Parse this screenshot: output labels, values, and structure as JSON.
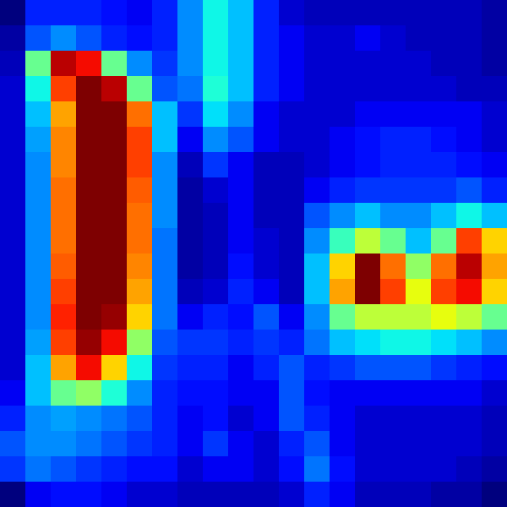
{
  "chart_data": {
    "type": "heatmap",
    "color": "jet",
    "tick_labels": false,
    "cells": [
      [
        0.05,
        0.2,
        0.2,
        0.2,
        0.18,
        0.15,
        0.2,
        0.3,
        0.4,
        0.35,
        0.2,
        0.12,
        0.1,
        0.1,
        0.1,
        0.1,
        0.1,
        0.1,
        0.1,
        0.08
      ],
      [
        0.08,
        0.25,
        0.3,
        0.25,
        0.2,
        0.18,
        0.2,
        0.3,
        0.4,
        0.35,
        0.2,
        0.15,
        0.12,
        0.12,
        0.15,
        0.12,
        0.1,
        0.1,
        0.1,
        0.08
      ],
      [
        0.1,
        0.5,
        0.95,
        0.9,
        0.5,
        0.3,
        0.22,
        0.3,
        0.4,
        0.35,
        0.2,
        0.15,
        0.12,
        0.12,
        0.12,
        0.12,
        0.12,
        0.1,
        0.1,
        0.08
      ],
      [
        0.12,
        0.4,
        0.85,
        1.0,
        0.95,
        0.5,
        0.25,
        0.28,
        0.42,
        0.35,
        0.2,
        0.15,
        0.12,
        0.12,
        0.12,
        0.12,
        0.12,
        0.12,
        0.1,
        0.1
      ],
      [
        0.12,
        0.35,
        0.75,
        1.0,
        1.0,
        0.8,
        0.35,
        0.22,
        0.38,
        0.3,
        0.15,
        0.12,
        0.12,
        0.12,
        0.15,
        0.15,
        0.15,
        0.15,
        0.15,
        0.12
      ],
      [
        0.12,
        0.32,
        0.78,
        1.0,
        1.0,
        0.85,
        0.35,
        0.15,
        0.3,
        0.25,
        0.15,
        0.12,
        0.12,
        0.15,
        0.18,
        0.2,
        0.2,
        0.18,
        0.15,
        0.12
      ],
      [
        0.12,
        0.3,
        0.78,
        1.0,
        1.0,
        0.85,
        0.3,
        0.1,
        0.22,
        0.15,
        0.1,
        0.1,
        0.12,
        0.15,
        0.18,
        0.2,
        0.2,
        0.2,
        0.18,
        0.15
      ],
      [
        0.12,
        0.3,
        0.8,
        1.0,
        1.0,
        0.82,
        0.3,
        0.08,
        0.12,
        0.15,
        0.1,
        0.1,
        0.15,
        0.2,
        0.22,
        0.22,
        0.22,
        0.22,
        0.25,
        0.2
      ],
      [
        0.12,
        0.3,
        0.8,
        1.0,
        1.0,
        0.8,
        0.3,
        0.08,
        0.1,
        0.15,
        0.1,
        0.1,
        0.25,
        0.3,
        0.35,
        0.3,
        0.3,
        0.35,
        0.4,
        0.35
      ],
      [
        0.12,
        0.3,
        0.8,
        1.0,
        1.0,
        0.8,
        0.28,
        0.08,
        0.1,
        0.15,
        0.12,
        0.1,
        0.3,
        0.45,
        0.6,
        0.5,
        0.35,
        0.5,
        0.85,
        0.7
      ],
      [
        0.12,
        0.3,
        0.82,
        1.0,
        1.0,
        0.78,
        0.28,
        0.08,
        0.1,
        0.18,
        0.12,
        0.1,
        0.35,
        0.7,
        1.0,
        0.8,
        0.55,
        0.8,
        0.95,
        0.75
      ],
      [
        0.12,
        0.3,
        0.85,
        1.0,
        1.0,
        0.75,
        0.28,
        0.1,
        0.12,
        0.2,
        0.15,
        0.1,
        0.35,
        0.75,
        1.0,
        0.85,
        0.65,
        0.85,
        0.9,
        0.7
      ],
      [
        0.12,
        0.3,
        0.88,
        1.0,
        0.98,
        0.7,
        0.28,
        0.15,
        0.2,
        0.18,
        0.25,
        0.15,
        0.3,
        0.5,
        0.6,
        0.6,
        0.6,
        0.65,
        0.6,
        0.5
      ],
      [
        0.12,
        0.32,
        0.85,
        0.98,
        0.9,
        0.55,
        0.25,
        0.22,
        0.22,
        0.2,
        0.22,
        0.2,
        0.28,
        0.35,
        0.38,
        0.4,
        0.4,
        0.38,
        0.35,
        0.3
      ],
      [
        0.12,
        0.35,
        0.75,
        0.9,
        0.7,
        0.4,
        0.22,
        0.2,
        0.2,
        0.15,
        0.2,
        0.25,
        0.2,
        0.22,
        0.25,
        0.25,
        0.25,
        0.22,
        0.2,
        0.18
      ],
      [
        0.15,
        0.35,
        0.5,
        0.55,
        0.42,
        0.3,
        0.2,
        0.18,
        0.18,
        0.15,
        0.15,
        0.25,
        0.18,
        0.15,
        0.15,
        0.15,
        0.15,
        0.15,
        0.15,
        0.12
      ],
      [
        0.2,
        0.3,
        0.32,
        0.3,
        0.28,
        0.25,
        0.2,
        0.15,
        0.18,
        0.12,
        0.15,
        0.25,
        0.2,
        0.15,
        0.12,
        0.12,
        0.12,
        0.12,
        0.12,
        0.1
      ],
      [
        0.25,
        0.3,
        0.3,
        0.28,
        0.25,
        0.22,
        0.2,
        0.15,
        0.22,
        0.15,
        0.12,
        0.2,
        0.25,
        0.15,
        0.12,
        0.12,
        0.12,
        0.12,
        0.12,
        0.1
      ],
      [
        0.22,
        0.28,
        0.25,
        0.22,
        0.2,
        0.18,
        0.18,
        0.12,
        0.15,
        0.15,
        0.12,
        0.18,
        0.28,
        0.18,
        0.12,
        0.12,
        0.12,
        0.12,
        0.1,
        0.08
      ],
      [
        0.05,
        0.15,
        0.18,
        0.18,
        0.15,
        0.12,
        0.12,
        0.1,
        0.1,
        0.1,
        0.1,
        0.12,
        0.2,
        0.15,
        0.1,
        0.1,
        0.1,
        0.08,
        0.08,
        0.05
      ]
    ]
  }
}
